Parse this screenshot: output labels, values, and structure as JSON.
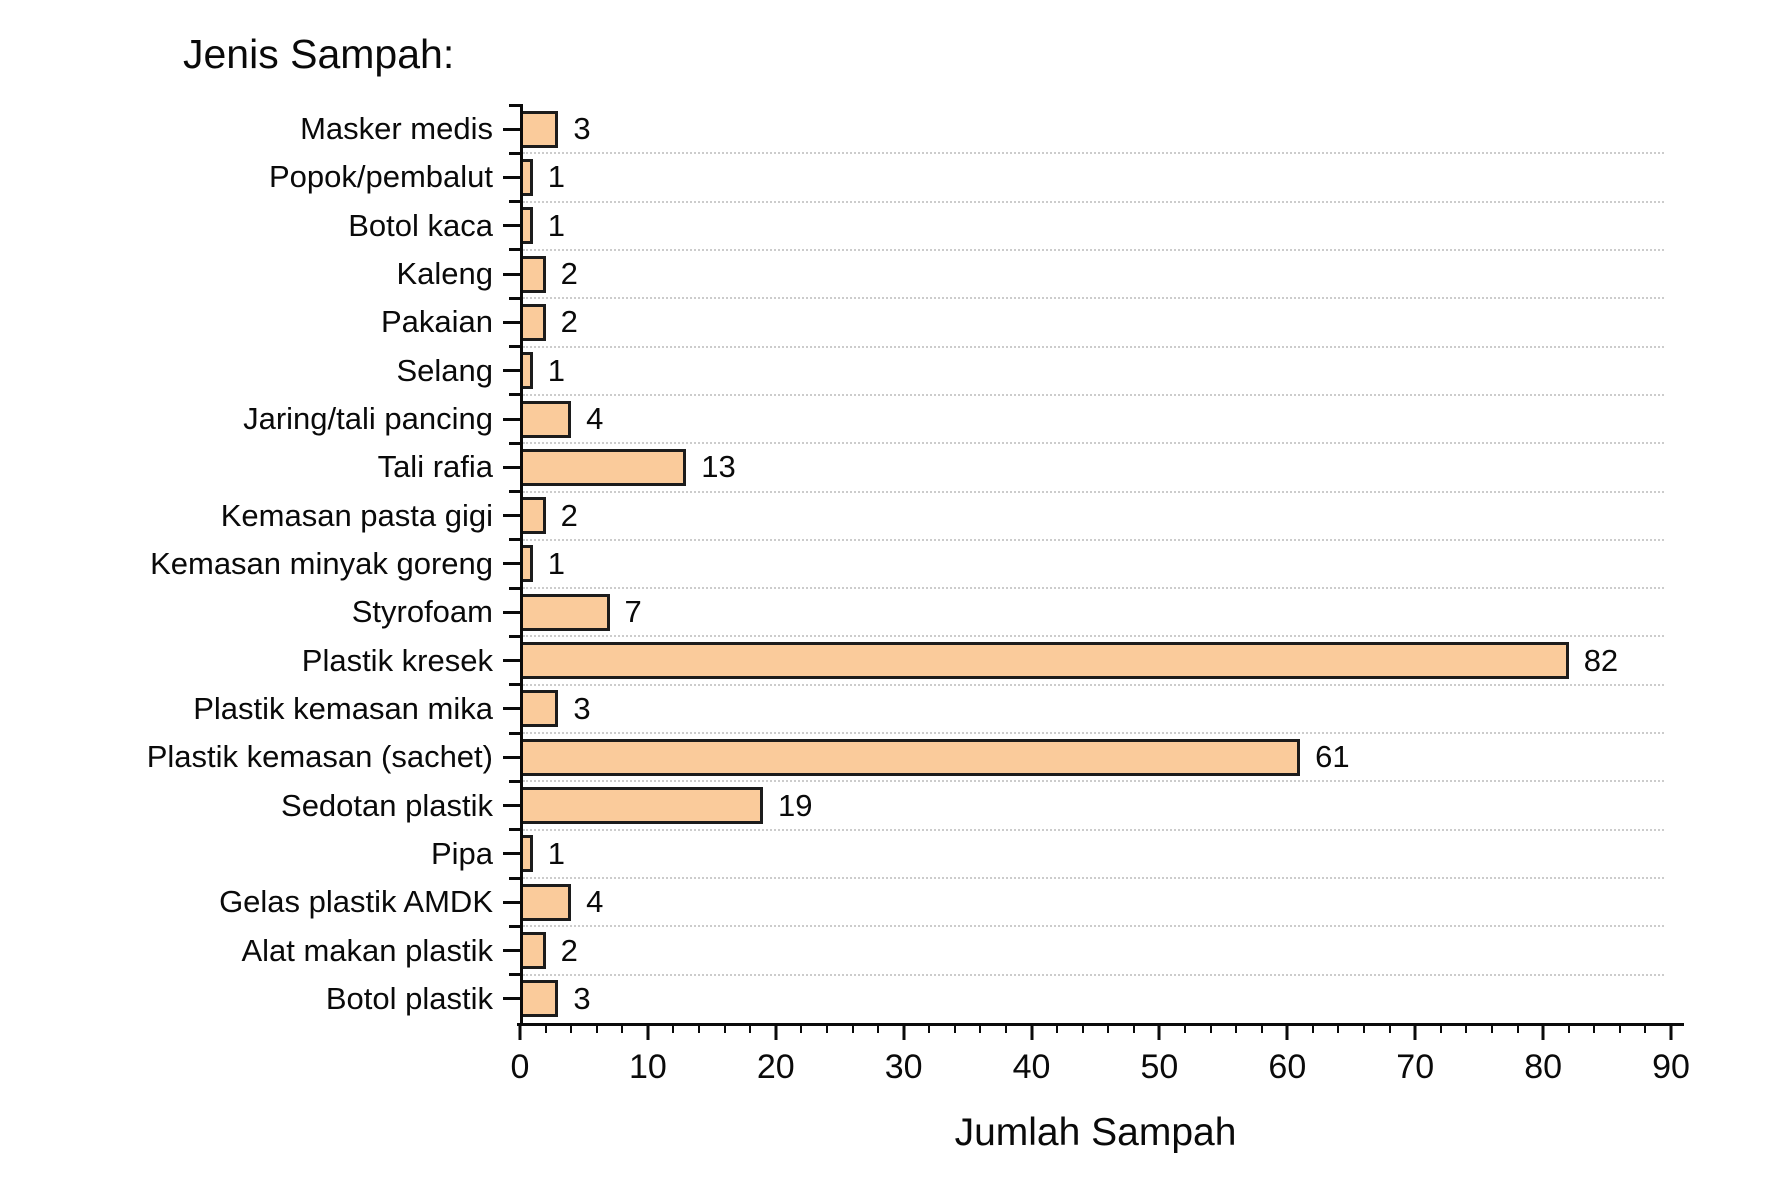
{
  "title": "Jenis Sampah:",
  "chart_data": {
    "type": "bar",
    "orientation": "horizontal",
    "title": "Jenis Sampah:",
    "xlabel": "Jumlah Sampah",
    "ylabel": "",
    "categories": [
      "Masker medis",
      "Popok/pembalut",
      "Botol kaca",
      "Kaleng",
      "Pakaian",
      "Selang",
      "Jaring/tali pancing",
      "Tali rafia",
      "Kemasan pasta gigi",
      "Kemasan minyak goreng",
      "Styrofoam",
      "Plastik kresek",
      "Plastik kemasan mika",
      "Plastik kemasan (sachet)",
      "Sedotan plastik",
      "Pipa",
      "Gelas plastik AMDK",
      "Alat makan plastik",
      "Botol plastik"
    ],
    "values": [
      3,
      1,
      1,
      2,
      2,
      1,
      4,
      13,
      2,
      1,
      7,
      82,
      3,
      61,
      19,
      1,
      4,
      2,
      3
    ],
    "xlim": [
      0,
      90
    ],
    "x_major_ticks": [
      0,
      10,
      20,
      30,
      40,
      50,
      60,
      70,
      80,
      90
    ],
    "x_minor_tick_step": 2,
    "value_labels_shown": true,
    "legend": "none",
    "grid": "dotted horizontal lines at category boundaries",
    "colors": {
      "bar_fill": "#FACB9B",
      "bar_border": "#1c1c1c",
      "axis": "#0a0a0a",
      "gridline": "#cccccc",
      "text": "#0a0a0a",
      "background": "#ffffff"
    }
  }
}
